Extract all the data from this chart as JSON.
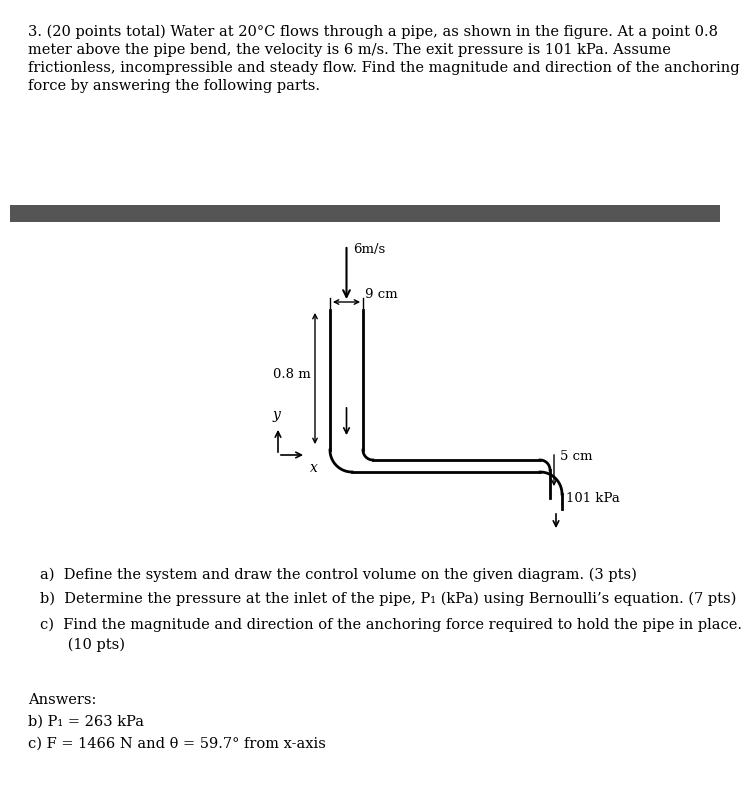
{
  "title_line1": "3. (20 points total) Water at 20°C flows through a pipe, as shown in the figure. At a point 0.8",
  "title_line2": "meter above the pipe bend, the velocity is 6 m/s. The exit pressure is 101 kPa. Assume",
  "title_line3": "frictionless, incompressible and steady flow. Find the magnitude and direction of the anchoring",
  "title_line4": "force by answering the following parts.",
  "question_a": "a)  Define the system and draw the control volume on the given diagram. (3 pts)",
  "question_b": "b)  Determine the pressure at the inlet of the pipe, P₁ (kPa) using Bernoulli’s equation. (7 pts)",
  "question_c1": "c)  Find the magnitude and direction of the anchoring force required to hold the pipe in place.",
  "question_c2": "      (10 pts)",
  "answers_label": "Answers:",
  "answer_b": "b) P₁ = 263 kPa",
  "answer_c": "c) F = 1466 N and θ = 59.7° from x-axis",
  "header_bar_color": "#555555",
  "bg_color": "#ffffff",
  "text_color": "#000000",
  "pipe_color": "#000000",
  "font_size_body": 10.5,
  "velocity_label": "6m/s",
  "width_label": "9 cm",
  "height_label": "0.8 m",
  "exit_dia_label": "5 cm",
  "pressure_label": "101 kPa"
}
